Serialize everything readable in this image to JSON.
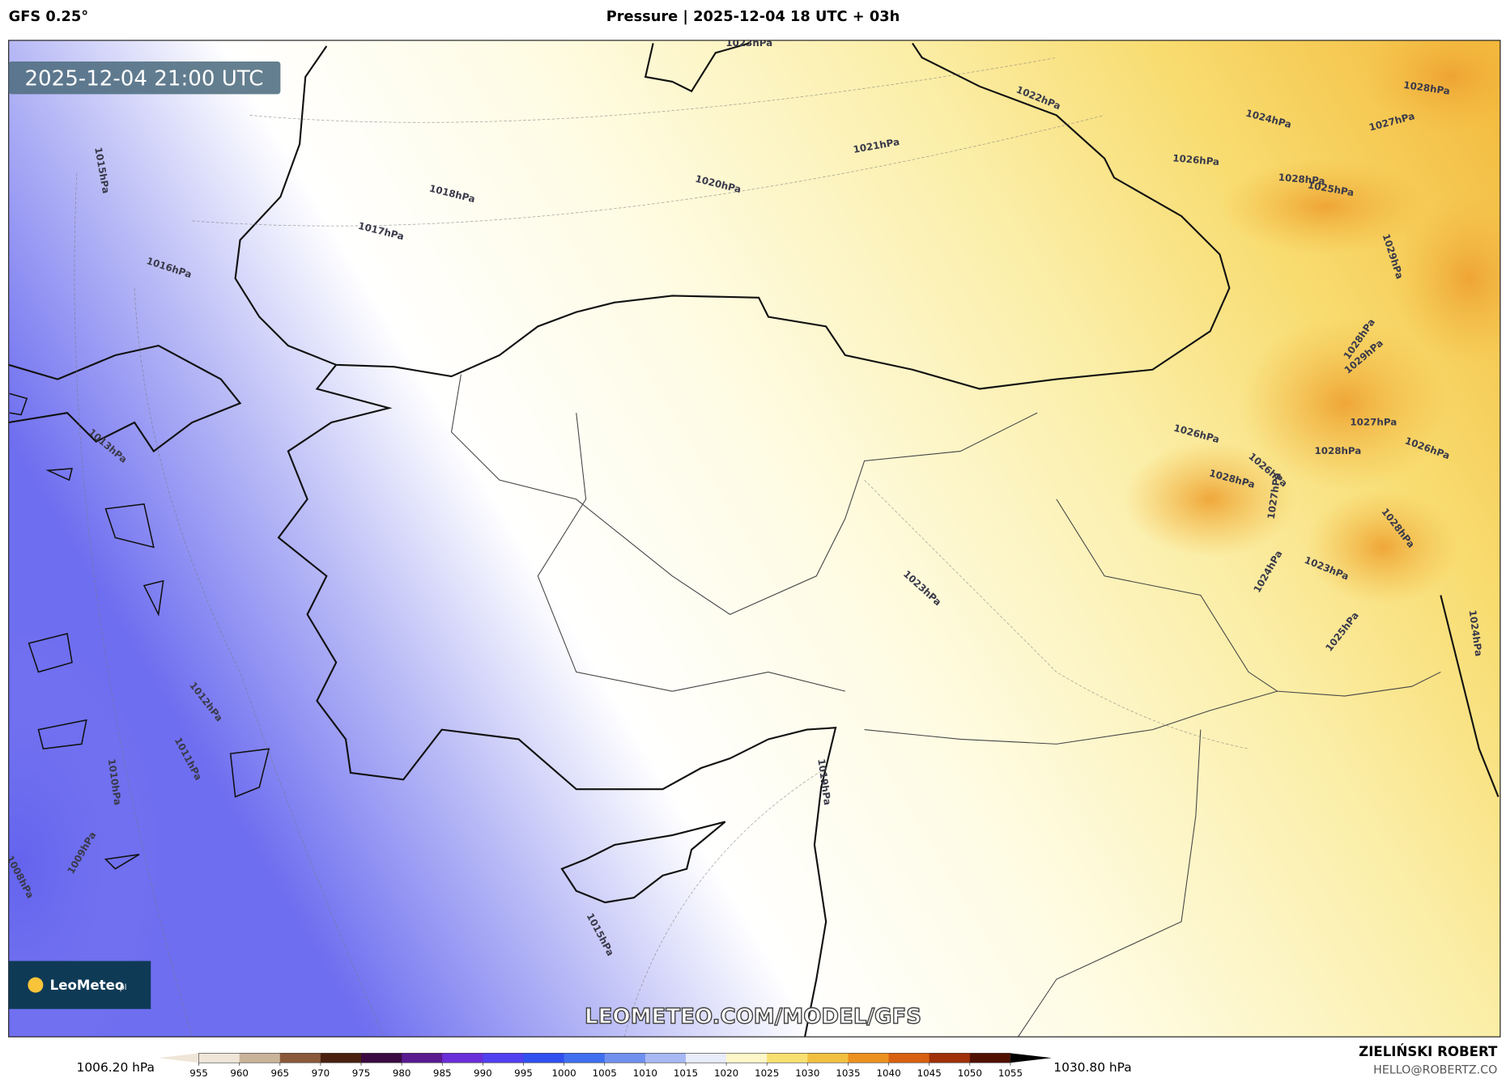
{
  "header": {
    "model": "GFS 0.25°",
    "title": "Pressure | 2025-12-04 18 UTC + 03h"
  },
  "map": {
    "timestamp": "2025-12-04 21:00 UTC",
    "watermark": "LEOMETEO.COM/MODEL/GFS",
    "isobars": [
      "1023hPa",
      "1022hPa",
      "1021hPa",
      "1020hPa",
      "1018hPa",
      "1017hPa",
      "1016hPa",
      "1015hPa",
      "1013hPa",
      "1012hPa",
      "1011hPa",
      "1010hPa",
      "1009hPa",
      "1008hPa",
      "1015hPa",
      "1019hPa",
      "1023hPa",
      "1026hPa",
      "1024hPa",
      "1028hPa",
      "1027hPa",
      "1028hPa",
      "1025hPa",
      "1029hPa",
      "1028hPa",
      "1029hPa",
      "1027hPa",
      "1028hPa",
      "1026hPa",
      "1026hPa",
      "1028hPa",
      "1026hPa",
      "1027hPa",
      "1028hPa",
      "1024hPa",
      "1023hPa",
      "1025hPa",
      "1024hPa"
    ]
  },
  "logo": {
    "name": "LeoMeteo",
    "suffix": ".pl"
  },
  "colorbar": {
    "min_label": "1006.20 hPa",
    "max_label": "1030.80 hPa",
    "ticks": [
      955,
      960,
      965,
      970,
      975,
      980,
      985,
      990,
      995,
      1000,
      1005,
      1010,
      1015,
      1020,
      1025,
      1030,
      1035,
      1040,
      1045,
      1050,
      1055
    ],
    "colors": [
      "#efe6d8",
      "#c9b49a",
      "#8a5a3a",
      "#4a2010",
      "#3a0a40",
      "#5a1a90",
      "#6a2ed8",
      "#5040f0",
      "#3050f0",
      "#4070f0",
      "#7090f0",
      "#a8b8f4",
      "#e8ecfb",
      "#fdf6c8",
      "#f8e070",
      "#f2c040",
      "#ec9020",
      "#d86010",
      "#a03008",
      "#501000"
    ]
  },
  "credit": {
    "name": "ZIELIŃSKI ROBERT",
    "email": "HELLO@ROBERTZ.CO"
  }
}
